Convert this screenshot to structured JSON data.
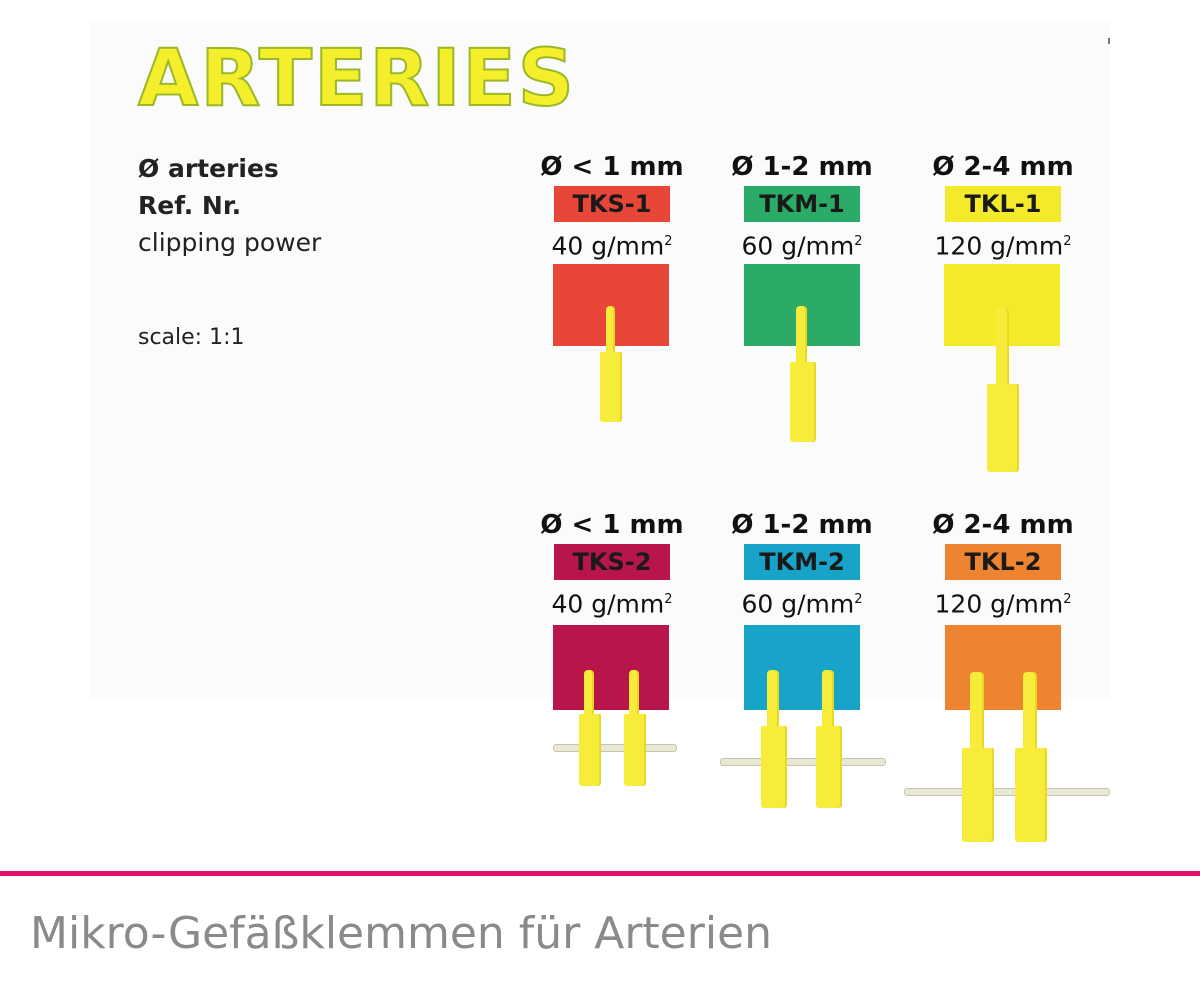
{
  "title": "ARTERIES",
  "legend": {
    "diameter": "Ø arteries",
    "ref": "Ref. Nr.",
    "power": "clipping power",
    "scale": "scale: 1:1"
  },
  "rows": [
    [
      {
        "diameter": "Ø < 1 mm",
        "ref": "TKS-1",
        "power": "40 g/mm",
        "sup": "2",
        "color": "#e74638"
      },
      {
        "diameter": "Ø 1-2 mm",
        "ref": "TKM-1",
        "power": "60 g/mm",
        "sup": "2",
        "color": "#2aab67"
      },
      {
        "diameter": "Ø 2-4 mm",
        "ref": "TKL-1",
        "power": "120 g/mm",
        "sup": "2",
        "color": "#f5ea2a"
      }
    ],
    [
      {
        "diameter": "Ø < 1 mm",
        "ref": "TKS-2",
        "power": "40 g/mm",
        "sup": "2",
        "color": "#b8164a"
      },
      {
        "diameter": "Ø 1-2 mm",
        "ref": "TKM-2",
        "power": "60 g/mm",
        "sup": "2",
        "color": "#18a3c9"
      },
      {
        "diameter": "Ø 2-4 mm",
        "ref": "TKL-2",
        "power": "120 g/mm",
        "sup": "2",
        "color": "#ef8430"
      }
    ]
  ],
  "footer": "Mikro-Gefäßklemmen für Arterien"
}
